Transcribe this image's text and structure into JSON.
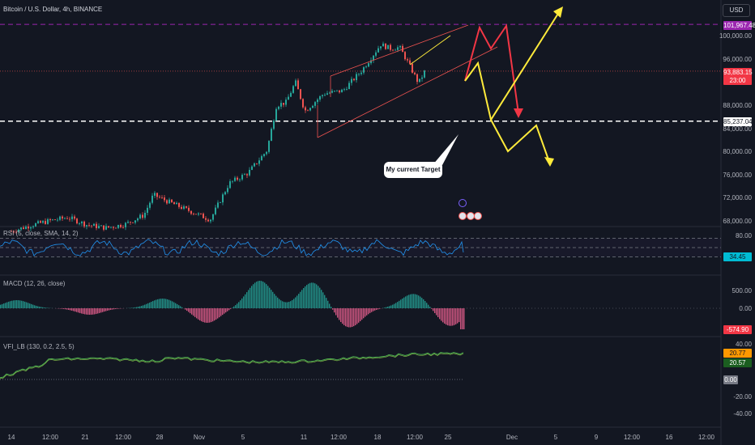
{
  "header": {
    "title": "Bitcoin / U.S. Dollar, 4h, BINANCE",
    "currency": "USD"
  },
  "annotation": {
    "text": "My current Target"
  },
  "price_axis": {
    "ticks": [
      {
        "label": "100,000.00",
        "v": 100000
      },
      {
        "label": "96,000.00",
        "v": 96000
      },
      {
        "label": "88,000.00",
        "v": 88000
      },
      {
        "label": "84,000.00",
        "v": 84000
      },
      {
        "label": "80,000.00",
        "v": 80000
      },
      {
        "label": "76,000.00",
        "v": 76000
      },
      {
        "label": "72,000.00",
        "v": 72000
      },
      {
        "label": "68,000.00",
        "v": 68000
      }
    ],
    "badges": {
      "high": "101,967.48",
      "last": "93,883.15",
      "countdown": "23:00",
      "target": "85,237.04"
    }
  },
  "indicators": {
    "rsi": {
      "title": "RSI (5, close, SMA, 14, 2)",
      "value": "34.45",
      "ticks": [
        "80.00"
      ]
    },
    "macd": {
      "title": "MACD (12, 26, close)",
      "value": "-574.90",
      "ticks": [
        "500.00",
        "0.00"
      ]
    },
    "vfi": {
      "title": "VFI_LB (130, 0.2, 2.5, 5)",
      "value1": "20.77",
      "value2": "20.57",
      "zero": "0.00",
      "ticks": [
        "40.00",
        "-20.00",
        "-40.00"
      ]
    }
  },
  "time_axis": [
    {
      "label": "14"
    },
    {
      "label": "12:00"
    },
    {
      "label": "21"
    },
    {
      "label": "12:00"
    },
    {
      "label": "28"
    },
    {
      "label": "Nov"
    },
    {
      "label": "5"
    },
    {
      "label": "11"
    },
    {
      "label": "12:00"
    },
    {
      "label": "18"
    },
    {
      "label": "12:00"
    },
    {
      "label": "25"
    },
    {
      "label": "Dec"
    },
    {
      "label": "5"
    },
    {
      "label": "9"
    },
    {
      "label": "12:00"
    },
    {
      "label": "16"
    },
    {
      "label": "12:00"
    }
  ],
  "chart_data": {
    "type": "candlestick",
    "symbol": "Bitcoin / U.S. Dollar",
    "interval": "4h",
    "exchange": "BINANCE",
    "ylim": [
      66000,
      104000
    ],
    "price_path": [
      [
        "Oct 14",
        66200
      ],
      [
        "Oct 16",
        67200
      ],
      [
        "Oct 18",
        68000
      ],
      [
        "Oct 20",
        68600
      ],
      [
        "Oct 22",
        67300
      ],
      [
        "Oct 24",
        66800
      ],
      [
        "Oct 26",
        67400
      ],
      [
        "Oct 28",
        69000
      ],
      [
        "Oct 29",
        72500
      ],
      [
        "Oct 31",
        71000
      ],
      [
        "Nov 2",
        69600
      ],
      [
        "Nov 4",
        68200
      ],
      [
        "Nov 6",
        74500
      ],
      [
        "Nov 8",
        76300
      ],
      [
        "Nov 10",
        80200
      ],
      [
        "Nov 11",
        88000
      ],
      [
        "Nov 12",
        88500
      ],
      [
        "Nov 13",
        92000
      ],
      [
        "Nov 14",
        87000
      ],
      [
        "Nov 16",
        90000
      ],
      [
        "Nov 18",
        90500
      ],
      [
        "Nov 20",
        94000
      ],
      [
        "Nov 22",
        98500
      ],
      [
        "Nov 23",
        97800
      ],
      [
        "Nov 24",
        98000
      ],
      [
        "Nov 25",
        95000
      ],
      [
        "Nov 26",
        91800
      ],
      [
        "Nov 26 16:00",
        93883.15
      ]
    ],
    "levels": {
      "high": 101967.48,
      "last": 93883.15,
      "target": 85237.04
    },
    "rsi": {
      "last": 34.45,
      "bands": [
        80,
        50,
        20
      ]
    },
    "macd": {
      "last": -574.9
    },
    "vfi": {
      "values": [
        20.77,
        20.57
      ],
      "zero": 0
    },
    "colors": {
      "up": "#26a69a",
      "down": "#ef5350",
      "forecast_up": "#ffeb3b",
      "forecast_down": "#f23645",
      "high_level": "#9c27b0",
      "rsi_line": "#2196f3",
      "vfi_line": "#4caf50"
    }
  }
}
